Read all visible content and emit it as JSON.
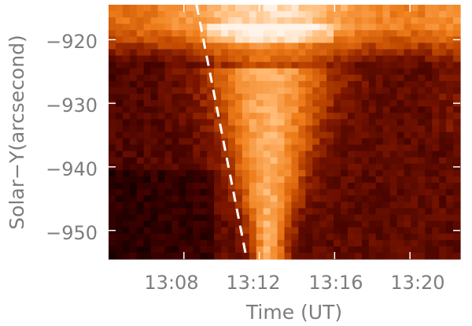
{
  "chart_data": {
    "type": "heatmap",
    "title": "",
    "xlabel": "Time (UT)",
    "ylabel": "Solar−Y(arcsecond)",
    "x_unit": "UT",
    "x_ticks": [
      "13:08",
      "13:12",
      "13:16",
      "13:20"
    ],
    "y_ticks": [
      "−920",
      "−930",
      "−940",
      "−950"
    ],
    "xlim": [
      "13:04",
      "13:22:40"
    ],
    "ylim": [
      -954.5,
      -914.5
    ],
    "colormap": [
      "#000000",
      "#3c0000",
      "#7a1400",
      "#c24a00",
      "#f07f1c",
      "#ffb870",
      "#fff4ea"
    ],
    "grid": false,
    "legend": "none",
    "features": [
      {
        "name": "",
        "type": "dashed-line",
        "color": "#ffffff",
        "points": [
          {
            "time": "13:08:40",
            "y": -914.5
          },
          {
            "time": "13:11:20",
            "y": -954.5
          }
        ]
      }
    ],
    "intensity_description": {
      "top_band_y_range": [
        -922,
        -914.5
      ],
      "bright_vertical_streak_center_time": "13:12:30",
      "notes": "Bright emission band at the top (-914 to -922 arcsec); a bright funnel narrows downward centered near 13:12-13:13; dark background elsewhere."
    }
  }
}
